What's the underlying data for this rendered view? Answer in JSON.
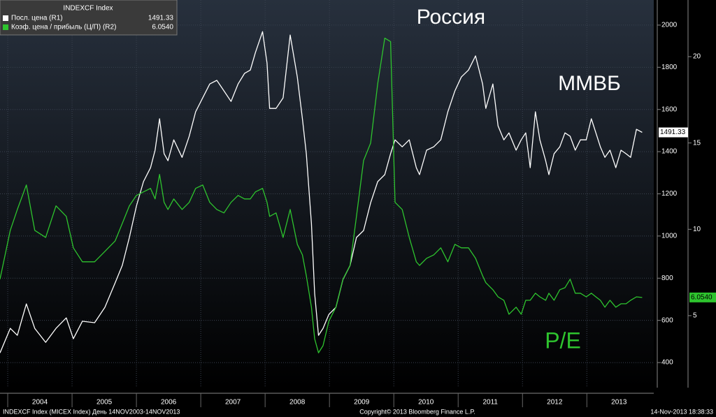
{
  "chart_data": {
    "type": "line",
    "title": "Россия",
    "annotations": [
      "ММВБ",
      "P/E"
    ],
    "legend_title": "INDEXCF Index",
    "legend_corner": "top-left",
    "grid": true,
    "x": [
      2003.88,
      2004.04,
      2004.15,
      2004.29,
      2004.42,
      2004.59,
      2004.75,
      2004.91,
      2005.02,
      2005.16,
      2005.35,
      2005.51,
      2005.67,
      2005.78,
      2005.89,
      2006.0,
      2006.11,
      2006.22,
      2006.29,
      2006.36,
      2006.43,
      2006.49,
      2006.58,
      2006.71,
      2006.82,
      2006.92,
      2007.03,
      2007.14,
      2007.25,
      2007.36,
      2007.47,
      2007.58,
      2007.68,
      2007.77,
      2007.85,
      2007.96,
      2008.03,
      2008.07,
      2008.17,
      2008.28,
      2008.39,
      2008.5,
      2008.58,
      2008.64,
      2008.72,
      2008.77,
      2008.83,
      2008.9,
      2008.99,
      2009.1,
      2009.21,
      2009.32,
      2009.42,
      2009.53,
      2009.64,
      2009.75,
      2009.86,
      2009.95,
      2010.02,
      2010.13,
      2010.24,
      2010.35,
      2010.4,
      2010.51,
      2010.62,
      2010.73,
      2010.84,
      2010.95,
      2011.05,
      2011.16,
      2011.27,
      2011.38,
      2011.43,
      2011.54,
      2011.62,
      2011.71,
      2011.79,
      2011.9,
      2011.98,
      2012.05,
      2012.12,
      2012.2,
      2012.27,
      2012.36,
      2012.41,
      2012.49,
      2012.58,
      2012.66,
      2012.74,
      2012.82,
      2012.9,
      2012.99,
      2013.07,
      2013.14,
      2013.21,
      2013.28,
      2013.36,
      2013.45,
      2013.53,
      2013.61,
      2013.68,
      2013.77,
      2013.86
    ],
    "series": [
      {
        "name": "Посл. цена  (R1)",
        "color": "#ffffff",
        "axis": "y",
        "last_value_label": "1491.33",
        "values": [
          446,
          562,
          529,
          678,
          562,
          496,
          562,
          612,
          513,
          596,
          589,
          662,
          778,
          861,
          993,
          1142,
          1258,
          1324,
          1407,
          1556,
          1390,
          1357,
          1456,
          1373,
          1473,
          1589,
          1655,
          1721,
          1738,
          1688,
          1638,
          1721,
          1771,
          1787,
          1870,
          1969,
          1820,
          1605,
          1605,
          1655,
          1953,
          1754,
          1556,
          1390,
          1059,
          728,
          529,
          562,
          628,
          662,
          794,
          860,
          993,
          1026,
          1158,
          1258,
          1291,
          1390,
          1456,
          1423,
          1456,
          1324,
          1291,
          1407,
          1423,
          1456,
          1589,
          1688,
          1754,
          1787,
          1854,
          1721,
          1605,
          1721,
          1522,
          1456,
          1489,
          1407,
          1456,
          1489,
          1324,
          1589,
          1456,
          1357,
          1291,
          1390,
          1423,
          1489,
          1473,
          1407,
          1456,
          1456,
          1556,
          1489,
          1423,
          1373,
          1407,
          1324,
          1407,
          1390,
          1373,
          1506,
          1491.33
        ]
      },
      {
        "name": "Коэф. цена / прибыль (Ц/П)  (R2)",
        "color": "#2ec42e",
        "axis": "y2",
        "last_value_label": "6.0540",
        "values": [
          7.11,
          9.94,
          11.15,
          12.57,
          9.94,
          9.53,
          11.36,
          10.75,
          8.93,
          8.12,
          8.12,
          8.72,
          9.33,
          10.34,
          11.36,
          11.96,
          12.17,
          12.37,
          11.76,
          13.18,
          11.56,
          11.15,
          11.76,
          11.15,
          11.56,
          12.37,
          12.57,
          11.56,
          11.15,
          10.95,
          11.56,
          11.96,
          11.76,
          11.76,
          12.17,
          12.37,
          11.56,
          10.75,
          10.95,
          9.53,
          11.15,
          9.13,
          8.52,
          7.31,
          5.49,
          3.66,
          2.85,
          3.26,
          4.68,
          5.49,
          7.11,
          7.91,
          10.75,
          13.99,
          15.0,
          18.44,
          21.07,
          20.87,
          11.56,
          11.15,
          9.53,
          8.12,
          7.91,
          8.32,
          8.52,
          8.93,
          8.12,
          9.13,
          8.93,
          8.93,
          8.32,
          7.31,
          6.91,
          6.5,
          6.09,
          5.89,
          5.08,
          5.49,
          5.08,
          5.89,
          5.89,
          6.3,
          6.09,
          5.89,
          6.3,
          5.89,
          6.5,
          6.62,
          7.11,
          6.3,
          6.3,
          6.09,
          6.3,
          6.09,
          5.89,
          5.49,
          5.89,
          5.49,
          5.69,
          5.69,
          5.89,
          6.09,
          6.054
        ]
      }
    ],
    "xlim": [
      2003.88,
      2014.04
    ],
    "xticks": [
      {
        "value": 2004,
        "label": "2004"
      },
      {
        "value": 2005,
        "label": "2005"
      },
      {
        "value": 2006,
        "label": "2006"
      },
      {
        "value": 2007,
        "label": "2007"
      },
      {
        "value": 2008,
        "label": "2008"
      },
      {
        "value": 2009,
        "label": "2009"
      },
      {
        "value": 2010,
        "label": "2010"
      },
      {
        "value": 2011,
        "label": "2011"
      },
      {
        "value": 2012,
        "label": "2012"
      },
      {
        "value": 2013,
        "label": "2013"
      }
    ],
    "ylim": [
      281,
      2119
    ],
    "yticks": [
      400,
      600,
      800,
      1000,
      1200,
      1400,
      1600,
      1800,
      2000
    ],
    "y2lim": [
      0.83,
      23.28
    ],
    "y2ticks": [
      5,
      10,
      15,
      20
    ],
    "footer": {
      "left": "INDEXCF Index (MICEX Index) День 14NOV2003-14NOV2013",
      "center": "Copyright© 2013 Bloomberg Finance L.P.",
      "right": "14-Nov-2013 18:38:33"
    }
  }
}
